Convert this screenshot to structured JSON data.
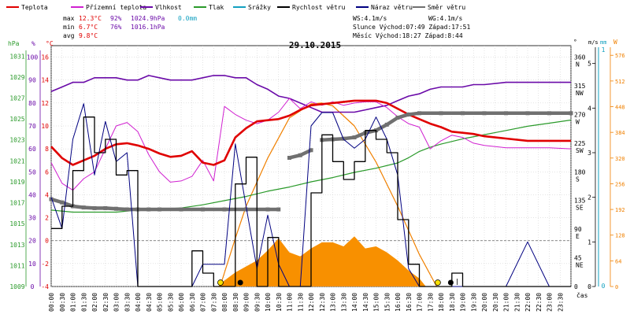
{
  "legend": [
    {
      "label": "Teplota",
      "color": "#e00000"
    },
    {
      "label": "Přízemní teplota",
      "color": "#d020d0"
    },
    {
      "label": "Vlhkost",
      "color": "#6a0aa8"
    },
    {
      "label": "Tlak",
      "color": "#2a9a2a"
    },
    {
      "label": "Srážky",
      "color": "#12a0c0"
    },
    {
      "label": "Rychlost větru",
      "color": "#000000"
    },
    {
      "label": "Náraz větru",
      "color": "#000080"
    },
    {
      "label": "Směr větru",
      "color": "#707070"
    }
  ],
  "stats": {
    "rows": [
      {
        "label": "max",
        "temp": "12.3°C",
        "hum": "92%",
        "press": "1024.9hPa",
        "rain": "0.0mm"
      },
      {
        "label": "min",
        "temp": "6.7°C",
        "hum": "76%",
        "press": "1016.1hPa",
        "rain": ""
      },
      {
        "label": "avg",
        "temp": "9.8°C",
        "hum": "",
        "press": "",
        "rain": ""
      }
    ],
    "ws": "WS:4.1m/s",
    "wg": "WG:4.1m/s",
    "sun": "Slunce Východ:07:49  Západ:17:51",
    "moon": "Měsíc  Východ:18:27  Západ:8:44"
  },
  "colors": {
    "temp": "#e00000",
    "ground": "#d020d0",
    "hum": "#6a0aa8",
    "press": "#2a9a2a",
    "rain": "#12a0c0",
    "wind": "#000000",
    "gust": "#000080",
    "dir": "#707070",
    "solar": "#f08000",
    "radiation": "#f89000",
    "grid": "#c8c8c8",
    "zero": "#606060"
  },
  "axes": {
    "hpa_unit": "hPa",
    "pct_unit": "%",
    "c_unit": "°C",
    "hpa_ticks": [
      "1031",
      "1029",
      "1027",
      "1025",
      "1023",
      "1021",
      "1019",
      "1017",
      "1015",
      "1013",
      "1011",
      "1009"
    ],
    "pct_ticks": [
      "100",
      "90",
      "80",
      "70",
      "60",
      "50",
      "40",
      "30",
      "20",
      "10",
      "0"
    ],
    "c_ticks": [
      "16",
      "14",
      "12",
      "10",
      "8",
      "6",
      "4",
      "2",
      "0",
      "-2",
      "-4"
    ],
    "deg_unit": "°",
    "deg_ticks": [
      {
        "v": "360",
        "d": "N"
      },
      {
        "v": "315",
        "d": "NW"
      },
      {
        "v": "270",
        "d": "W"
      },
      {
        "v": "225",
        "d": "SW"
      },
      {
        "v": "180",
        "d": "S"
      },
      {
        "v": "135",
        "d": "SE"
      },
      {
        "v": "90",
        "d": "E"
      },
      {
        "v": "45",
        "d": "NE"
      },
      {
        "v": "0",
        "d": ""
      }
    ],
    "ms_unit": "m/s",
    "ms_ticks": [
      "5",
      "4",
      "3",
      "2",
      "1",
      "0"
    ],
    "mm_unit": "mm",
    "mm_ticks": [
      "1",
      "0"
    ],
    "w_unit": "W",
    "w_ticks": [
      "576",
      "512",
      "448",
      "384",
      "320",
      "256",
      "192",
      "128",
      "64",
      "0"
    ],
    "time_unit": "čas",
    "time_ticks": [
      "00:00",
      "00:30",
      "01:00",
      "01:30",
      "02:00",
      "02:30",
      "03:00",
      "03:30",
      "04:00",
      "04:30",
      "05:00",
      "05:30",
      "06:00",
      "06:30",
      "07:00",
      "07:30",
      "08:00",
      "08:30",
      "09:00",
      "09:30",
      "10:00",
      "10:30",
      "11:00",
      "11:30",
      "12:00",
      "12:30",
      "13:00",
      "13:30",
      "14:00",
      "14:30",
      "15:00",
      "15:30",
      "16:00",
      "16:30",
      "17:00",
      "17:30",
      "18:00",
      "18:30",
      "19:00",
      "19:30",
      "20:00",
      "20:30",
      "21:00",
      "21:30",
      "22:00",
      "22:30",
      "23:00",
      "23:30"
    ]
  },
  "chart_data": {
    "type": "line",
    "title": "29.10.2015",
    "x_unit": "hours",
    "ranges": {
      "temp_c": [
        -4,
        17
      ],
      "humidity_pct": [
        0,
        105
      ],
      "pressure_hpa": [
        1009,
        1032
      ],
      "wind_ms": [
        0,
        5.4
      ],
      "direction_deg": [
        0,
        378
      ],
      "solar_w": [
        0,
        600
      ]
    },
    "series": [
      {
        "name": "Teplota",
        "axis": "temp_c",
        "x": [
          0,
          0.5,
          1,
          1.5,
          2,
          2.5,
          3,
          3.5,
          4,
          4.5,
          5,
          5.5,
          6,
          6.5,
          7,
          7.5,
          8,
          8.5,
          9,
          9.5,
          10,
          10.5,
          11,
          11.5,
          12,
          12.5,
          13,
          13.5,
          14,
          14.5,
          15,
          15.5,
          16,
          16.5,
          17,
          17.5,
          18,
          18.5,
          19,
          19.5,
          20,
          21,
          22,
          23,
          24
        ],
        "values": [
          8.2,
          7.2,
          6.6,
          7.0,
          7.4,
          8.0,
          8.4,
          8.5,
          8.3,
          8.0,
          7.6,
          7.3,
          7.4,
          7.8,
          6.8,
          6.6,
          7.0,
          9.0,
          9.8,
          10.4,
          10.5,
          10.6,
          10.9,
          11.4,
          11.8,
          11.9,
          12.0,
          12.1,
          12.2,
          12.2,
          12.2,
          12.0,
          11.5,
          11.0,
          10.6,
          10.2,
          9.9,
          9.5,
          9.4,
          9.3,
          9.1,
          8.9,
          8.7,
          8.7,
          8.7
        ]
      },
      {
        "name": "Přízemní teplota",
        "axis": "temp_c",
        "x": [
          0,
          0.5,
          1,
          1.5,
          2,
          2.5,
          3,
          3.5,
          4,
          4.5,
          5,
          5.5,
          6,
          6.5,
          7,
          7.5,
          8,
          8.5,
          9,
          9.5,
          10,
          10.5,
          11,
          11.5,
          12,
          12.5,
          13,
          13.5,
          14,
          14.5,
          15,
          15.5,
          16,
          16.5,
          17,
          17.5,
          18,
          18.5,
          19,
          19.5,
          20,
          21,
          22,
          23,
          24
        ],
        "values": [
          6.8,
          5.0,
          4.4,
          5.4,
          6.0,
          8.0,
          10.0,
          10.3,
          9.5,
          7.5,
          6.0,
          5.1,
          5.2,
          5.6,
          7.0,
          5.2,
          11.7,
          11.0,
          10.5,
          10.2,
          10.5,
          11.2,
          12.4,
          11.5,
          12.1,
          11.8,
          12.1,
          11.8,
          12.0,
          12.1,
          12.1,
          11.6,
          10.8,
          10.2,
          9.9,
          8.0,
          8.7,
          9.2,
          9.0,
          8.5,
          8.3,
          8.1,
          8.1,
          8.1,
          8.0
        ]
      },
      {
        "name": "Vlhkost",
        "axis": "humidity_pct",
        "x": [
          0,
          0.5,
          1,
          1.5,
          2,
          2.5,
          3,
          3.5,
          4,
          4.5,
          5,
          5.5,
          6,
          6.5,
          7,
          7.5,
          8,
          8.5,
          9,
          9.5,
          10,
          10.5,
          11,
          11.5,
          12,
          12.5,
          13,
          13.5,
          14,
          14.5,
          15,
          15.5,
          16,
          16.5,
          17,
          17.5,
          18,
          18.5,
          19,
          19.5,
          20,
          21,
          22,
          23,
          24
        ],
        "values": [
          85,
          87,
          89,
          89,
          91,
          91,
          91,
          90,
          90,
          92,
          91,
          90,
          90,
          90,
          91,
          92,
          92,
          91,
          91,
          88,
          86,
          83,
          82,
          80,
          78,
          76,
          76,
          76,
          76,
          77,
          78,
          79,
          81,
          83,
          84,
          86,
          87,
          87,
          87,
          88,
          88,
          89,
          89,
          89,
          89
        ]
      },
      {
        "name": "Tlak",
        "axis": "pressure_hpa",
        "x": [
          0,
          1,
          2,
          3,
          4,
          5,
          6,
          7,
          8,
          9,
          10,
          11,
          12,
          13,
          14,
          15,
          16,
          16.5,
          17,
          17.5,
          18,
          19,
          20,
          21,
          22,
          23,
          24
        ],
        "values": [
          1016.3,
          1016.1,
          1016.1,
          1016.1,
          1016.3,
          1016.4,
          1016.5,
          1016.8,
          1017.2,
          1017.6,
          1018.1,
          1018.5,
          1019.0,
          1019.4,
          1019.9,
          1020.3,
          1020.8,
          1021.3,
          1021.9,
          1022.3,
          1022.6,
          1023.1,
          1023.5,
          1023.9,
          1024.3,
          1024.6,
          1024.9
        ]
      },
      {
        "name": "Rychlost větru",
        "axis": "wind_ms",
        "x": [
          0,
          0.5,
          1,
          1.5,
          2,
          2.5,
          3,
          3.5,
          4,
          4.5,
          5,
          5.5,
          6,
          6.5,
          7,
          7.5,
          8,
          8.5,
          9,
          9.5,
          10,
          10.5,
          11,
          11.5,
          12,
          12.5,
          13,
          13.5,
          14,
          14.5,
          15,
          15.5,
          16,
          16.5,
          17,
          17.5,
          18,
          18.5,
          19,
          20,
          21,
          22,
          23,
          24
        ],
        "values": [
          1.3,
          1.8,
          2.6,
          3.8,
          3.0,
          3.3,
          2.5,
          2.6,
          0,
          0,
          0,
          0,
          0,
          0.8,
          0.3,
          0,
          0,
          2.3,
          2.9,
          0,
          1.1,
          0,
          0,
          0,
          2.1,
          3.4,
          2.8,
          2.4,
          2.8,
          3.5,
          3.3,
          3.0,
          1.5,
          0.5,
          0,
          0,
          0,
          0.3,
          0,
          0,
          0,
          0,
          0,
          0
        ]
      },
      {
        "name": "Náraz větru",
        "axis": "wind_ms",
        "x": [
          0,
          0.5,
          1,
          1.5,
          2,
          2.5,
          3,
          3.5,
          4,
          4.5,
          5,
          5.5,
          6,
          6.5,
          7,
          7.5,
          8,
          8.5,
          9,
          9.5,
          10,
          10.5,
          11,
          11.5,
          12,
          12.5,
          13,
          13.5,
          14,
          14.5,
          15,
          15.5,
          16,
          16.5,
          17,
          17.5,
          18,
          18.5,
          19,
          20,
          21,
          22,
          23,
          24
        ],
        "values": [
          2.0,
          1.3,
          3.3,
          4.1,
          2.5,
          3.7,
          2.8,
          3.0,
          0,
          0,
          0,
          0,
          0,
          0,
          0.5,
          0.5,
          0.5,
          3.2,
          1.8,
          0.4,
          1.6,
          0.5,
          0,
          0,
          3.6,
          3.9,
          3.9,
          3.3,
          3.1,
          3.3,
          3.8,
          3.3,
          2.5,
          0.4,
          0,
          0,
          0,
          0,
          0,
          0,
          0,
          1.0,
          0,
          0
        ]
      },
      {
        "name": "Směr větru",
        "axis": "direction_deg",
        "x": [
          0,
          0.5,
          1,
          1.5,
          2,
          2.5,
          3,
          3.5,
          4,
          4.5,
          5,
          6,
          7,
          8,
          9,
          10,
          10.5,
          11,
          11.5,
          12,
          12.5,
          13,
          13.5,
          14,
          14.5,
          15,
          15.5,
          16,
          16.5,
          17,
          18,
          19,
          20,
          21,
          22,
          23,
          24
        ],
        "values": [
          137,
          132,
          126,
          124,
          123,
          123,
          122,
          121,
          121,
          121,
          121,
          121,
          121,
          121,
          121,
          121,
          121,
          202,
          206,
          214,
          230,
          231,
          232,
          234,
          241,
          245,
          254,
          265,
          270,
          272,
          272,
          272,
          272,
          272,
          272,
          272,
          272
        ]
      }
    ],
    "solar_curve_w": {
      "x": [
        7.8,
        8.5,
        9,
        10,
        11,
        12,
        12.5,
        13,
        14,
        15,
        16,
        17,
        17.8
      ],
      "values": [
        0,
        120,
        200,
        320,
        420,
        455,
        457,
        450,
        400,
        310,
        200,
        80,
        0
      ]
    },
    "radiation_w": {
      "x": [
        7.7,
        8,
        8.5,
        9,
        9.5,
        10,
        10.5,
        11,
        11.5,
        12,
        12.5,
        13,
        13.5,
        14,
        14.5,
        15,
        15.5,
        16,
        16.5,
        17,
        17.3
      ],
      "values": [
        0,
        15,
        35,
        50,
        65,
        90,
        120,
        85,
        75,
        95,
        110,
        110,
        100,
        125,
        95,
        100,
        85,
        65,
        40,
        20,
        0
      ]
    },
    "markers": [
      {
        "type": "sunrise",
        "time": "07:49"
      },
      {
        "type": "moonset",
        "time": "08:44"
      },
      {
        "type": "sunset",
        "time": "17:51"
      },
      {
        "type": "moonrise",
        "time": "18:27"
      }
    ]
  }
}
